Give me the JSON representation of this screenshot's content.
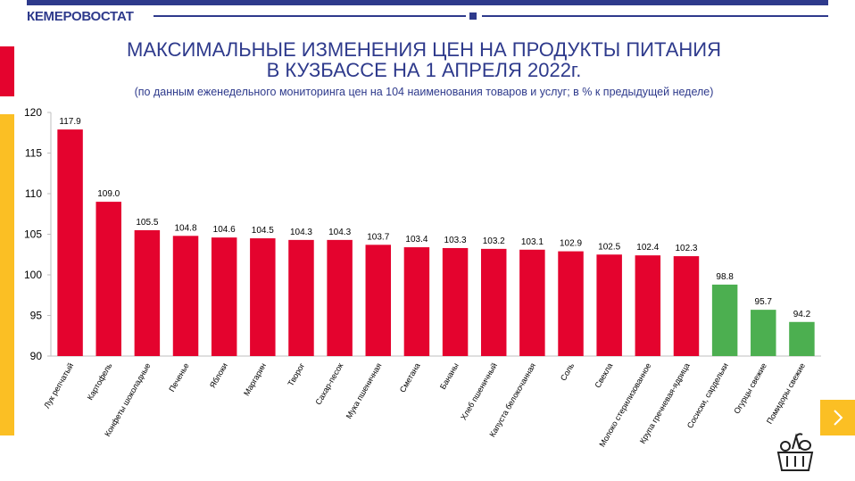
{
  "header": {
    "logo": "КЕМЕРОВОСТАТ",
    "title_line1": "МАКСИМАЛЬНЫЕ ИЗМЕНЕНИЯ ЦЕН НА ПРОДУКТЫ ПИТАНИЯ",
    "title_line2": "В КУЗБАССЕ НА 1 АПРЕЛЯ 2022г.",
    "subtitle": "(по данным еженедельного мониторинга цен на 104 наименования товаров и услуг; в % к предыдущей неделе)"
  },
  "nav": {
    "next_icon": "chevron-right-icon",
    "basket_icon": "food-basket-icon"
  },
  "colors": {
    "increase": "#e4032e",
    "decrease": "#4caf50",
    "brand": "#2e3a8c",
    "accent": "#fbbf24"
  },
  "chart_data": {
    "type": "bar",
    "title": "",
    "xlabel": "",
    "ylabel": "",
    "ylim": [
      90,
      120
    ],
    "yticks": [
      90,
      95,
      100,
      105,
      110,
      115,
      120
    ],
    "grid": false,
    "categories": [
      "Лук репчатый",
      "Картофель",
      "Конфеты шоколадные",
      "Печенье",
      "Яблоки",
      "Маргарин",
      "Творог",
      "Сахар-песок",
      "Мука пшеничная",
      "Сметана",
      "Бананы",
      "Хлеб пшеничный",
      "Капуста белокочанная",
      "Соль",
      "Свекла",
      "Молоко стерилизованное",
      "Крупа гречневая-ядрица",
      "Сосиски, сардельки",
      "Огурцы свежие",
      "Помидоры свежие"
    ],
    "values": [
      117.9,
      109.0,
      105.5,
      104.8,
      104.6,
      104.5,
      104.3,
      104.3,
      103.7,
      103.4,
      103.3,
      103.2,
      103.1,
      102.9,
      102.5,
      102.4,
      102.3,
      98.8,
      95.7,
      94.2
    ],
    "value_labels": [
      "117.9",
      "109.0",
      "105.5",
      "104.8",
      "104.6",
      "104.5",
      "104.3",
      "104.3",
      "103.7",
      "103.4",
      "103.3",
      "103.2",
      "103.1",
      "102.9",
      "102.5",
      "102.4",
      "102.3",
      "98.8",
      "95.7",
      "94.2"
    ]
  }
}
